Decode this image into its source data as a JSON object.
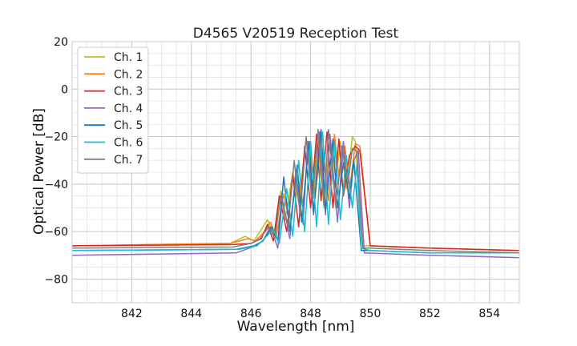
{
  "chart_data": {
    "type": "line",
    "title": "D4565 V20519 Reception Test",
    "xlabel": "Wavelength [nm]",
    "ylabel": "Optical Power [dB]",
    "xlim": [
      840,
      855
    ],
    "ylim": [
      -90,
      20
    ],
    "xticks": [
      842,
      844,
      846,
      848,
      850,
      852,
      854
    ],
    "xtick_labels": [
      "842",
      "844",
      "846",
      "848",
      "850",
      "852",
      "854"
    ],
    "yticks": [
      -80,
      -60,
      -40,
      -20,
      0,
      20
    ],
    "ytick_labels": [
      "−80",
      "−60",
      "−40",
      "−20",
      "0",
      "20"
    ],
    "grid": true,
    "minor_grid": true,
    "legend_position": "top-left",
    "series": [
      {
        "name": "Ch. 1",
        "color": "#bcbd22",
        "x": [
          840,
          845.3,
          845.8,
          846.1,
          846.3,
          846.55,
          846.8,
          847.0,
          847.15,
          847.4,
          847.6,
          847.85,
          848.1,
          848.25,
          848.45,
          848.65,
          848.85,
          849.0,
          849.2,
          849.4,
          849.5,
          849.75,
          850.0,
          852.0,
          855.0
        ],
        "y": [
          -66,
          -65,
          -62,
          -64,
          -60,
          -55,
          -62,
          -43,
          -55,
          -35,
          -48,
          -21,
          -46,
          -21,
          -50,
          -20,
          -38,
          -22,
          -42,
          -20,
          -22,
          -66,
          -66,
          -67,
          -68
        ]
      },
      {
        "name": "Ch. 2",
        "color": "#ff7f0e",
        "x": [
          840,
          845.3,
          845.9,
          846.15,
          846.45,
          846.65,
          846.85,
          847.1,
          847.3,
          847.55,
          847.75,
          847.95,
          848.15,
          848.35,
          848.6,
          848.8,
          848.95,
          849.15,
          849.3,
          849.5,
          849.65,
          850.0,
          852.0,
          855.0
        ],
        "y": [
          -66,
          -65,
          -63,
          -64,
          -60,
          -56,
          -62,
          -44,
          -57,
          -36,
          -48,
          -22,
          -46,
          -21,
          -47,
          -19,
          -37,
          -24,
          -43,
          -23,
          -24,
          -66,
          -67,
          -68
        ]
      },
      {
        "name": "Ch. 3",
        "color": "#d62728",
        "x": [
          840,
          845.4,
          846.0,
          846.35,
          846.55,
          846.75,
          846.95,
          847.2,
          847.4,
          847.6,
          847.8,
          848.0,
          848.2,
          848.35,
          848.55,
          848.75,
          848.95,
          849.1,
          849.3,
          849.5,
          849.65,
          850.0,
          852.0,
          855.0
        ],
        "y": [
          -66,
          -65.5,
          -65,
          -63,
          -57,
          -64,
          -45,
          -60,
          -36,
          -58,
          -24,
          -50,
          -19,
          -47,
          -18,
          -50,
          -21,
          -45,
          -28,
          -24,
          -26,
          -66,
          -67,
          -68
        ]
      },
      {
        "name": "Ch. 4",
        "color": "#9467bd",
        "x": [
          840,
          845.5,
          846.15,
          846.4,
          846.65,
          846.9,
          847.05,
          847.3,
          847.5,
          847.75,
          847.9,
          848.1,
          848.3,
          848.5,
          848.65,
          848.9,
          849.1,
          849.3,
          849.45,
          849.6,
          849.8,
          852.0,
          855.0
        ],
        "y": [
          -70,
          -69,
          -66,
          -64,
          -58,
          -67,
          -46,
          -63,
          -35,
          -57,
          -22,
          -53,
          -18,
          -53,
          -19,
          -56,
          -22,
          -50,
          -30,
          -26,
          -69,
          -70,
          -71
        ]
      },
      {
        "name": "Ch. 5",
        "color": "#1f77b4",
        "x": [
          840,
          845.5,
          846.1,
          846.4,
          846.7,
          846.9,
          847.1,
          847.3,
          847.55,
          847.7,
          847.95,
          848.1,
          848.35,
          848.5,
          848.75,
          848.9,
          849.1,
          849.3,
          849.45,
          849.7,
          850.0,
          852.0,
          855.0
        ],
        "y": [
          -68,
          -67.5,
          -66,
          -64,
          -58,
          -64,
          -37,
          -60,
          -32,
          -56,
          -22,
          -52,
          -17,
          -51,
          -21,
          -50,
          -31,
          -46,
          -30,
          -68,
          -68,
          -69,
          -69
        ]
      },
      {
        "name": "Ch. 6",
        "color": "#17becf",
        "x": [
          840,
          845.6,
          846.2,
          846.45,
          846.75,
          846.95,
          847.2,
          847.4,
          847.6,
          847.8,
          848.0,
          848.2,
          848.4,
          848.6,
          848.8,
          849.0,
          849.2,
          849.4,
          849.55,
          849.7,
          850.0,
          852.0,
          855.0
        ],
        "y": [
          -68,
          -67.5,
          -66,
          -63,
          -59,
          -65,
          -42,
          -62,
          -30,
          -60,
          -22,
          -58,
          -18,
          -57,
          -22,
          -55,
          -28,
          -50,
          -32,
          -67,
          -68,
          -69,
          -69
        ]
      },
      {
        "name": "Ch. 7",
        "color": "#7f7f7f",
        "x": [
          840,
          845.4,
          846.0,
          846.3,
          846.6,
          846.8,
          847.0,
          847.25,
          847.45,
          847.65,
          847.85,
          848.05,
          848.25,
          848.45,
          848.6,
          848.85,
          849.05,
          849.25,
          849.4,
          849.55,
          849.75,
          850.0,
          852.0,
          855.0
        ],
        "y": [
          -67,
          -66.5,
          -65,
          -63,
          -58,
          -63,
          -45,
          -58,
          -30,
          -53,
          -20,
          -48,
          -17,
          -49,
          -17,
          -50,
          -24,
          -40,
          -25,
          -26,
          -67,
          -67,
          -68,
          -69
        ]
      }
    ]
  }
}
